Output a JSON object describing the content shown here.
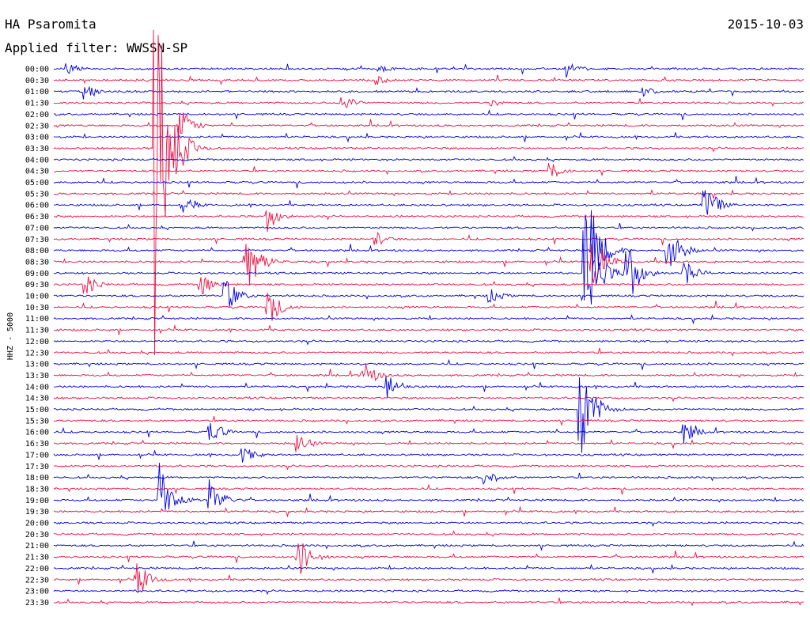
{
  "header": {
    "station": "HA Psaromita",
    "filter_label": "Applied filter: WWSSN-SP",
    "date": "2015-10-03"
  },
  "chart_data": {
    "type": "helicorder",
    "ylabel": "HHZ - 5000",
    "row_labels": [
      "00:00",
      "00:30",
      "01:00",
      "01:30",
      "02:00",
      "02:30",
      "03:00",
      "03:30",
      "04:00",
      "04:30",
      "05:00",
      "05:30",
      "06:00",
      "06:30",
      "07:00",
      "07:30",
      "08:00",
      "08:30",
      "09:00",
      "09:30",
      "10:00",
      "10:30",
      "11:00",
      "11:30",
      "12:00",
      "12:30",
      "13:00",
      "13:30",
      "14:00",
      "14:30",
      "15:00",
      "15:30",
      "16:00",
      "16:30",
      "17:00",
      "17:30",
      "18:00",
      "18:30",
      "19:00",
      "19:30",
      "20:00",
      "20:30",
      "21:00",
      "21:30",
      "22:00",
      "22:30",
      "23:00",
      "23:30"
    ],
    "trace_colors": [
      "#0000e0",
      "#ee1144"
    ],
    "minutes_per_line": 30,
    "events": [
      {
        "row": 0,
        "minute": 0.5,
        "amplitude": 10
      },
      {
        "row": 0,
        "minute": 13,
        "amplitude": 6
      },
      {
        "row": 0,
        "minute": 20.5,
        "amplitude": 12
      },
      {
        "row": 1,
        "minute": 13,
        "amplitude": 6
      },
      {
        "row": 2,
        "minute": 1.2,
        "amplitude": 10
      },
      {
        "row": 2,
        "minute": 23.5,
        "amplitude": 8
      },
      {
        "row": 3,
        "minute": 11.5,
        "amplitude": 14
      },
      {
        "row": 3,
        "minute": 17.5,
        "amplitude": 6
      },
      {
        "row": 5,
        "minute": 5,
        "amplitude": 26
      },
      {
        "row": 7,
        "minute": 4,
        "amplitude": 300
      },
      {
        "row": 9,
        "minute": 19.8,
        "amplitude": 14
      },
      {
        "row": 12,
        "minute": 5.2,
        "amplitude": 12
      },
      {
        "row": 12,
        "minute": 26,
        "amplitude": 30
      },
      {
        "row": 13,
        "minute": 8.5,
        "amplitude": 22
      },
      {
        "row": 15,
        "minute": 12.8,
        "amplitude": 12
      },
      {
        "row": 16,
        "minute": 21.5,
        "amplitude": 55
      },
      {
        "row": 16,
        "minute": 24.5,
        "amplitude": 40
      },
      {
        "row": 17,
        "minute": 21.5,
        "amplitude": 40
      },
      {
        "row": 17,
        "minute": 7.6,
        "amplitude": 60
      },
      {
        "row": 18,
        "minute": 21.2,
        "amplitude": 90
      },
      {
        "row": 18,
        "minute": 22.8,
        "amplitude": 60
      },
      {
        "row": 18,
        "minute": 25.2,
        "amplitude": 20
      },
      {
        "row": 19,
        "minute": 1.2,
        "amplitude": 16
      },
      {
        "row": 19,
        "minute": 5.8,
        "amplitude": 18
      },
      {
        "row": 20,
        "minute": 6.8,
        "amplitude": 28
      },
      {
        "row": 20,
        "minute": 17.4,
        "amplitude": 12
      },
      {
        "row": 21,
        "minute": 8.5,
        "amplitude": 30
      },
      {
        "row": 27,
        "minute": 12.3,
        "amplitude": 22
      },
      {
        "row": 28,
        "minute": 13.3,
        "amplitude": 20
      },
      {
        "row": 30,
        "minute": 21,
        "amplitude": 80
      },
      {
        "row": 32,
        "minute": 6.2,
        "amplitude": 18
      },
      {
        "row": 32,
        "minute": 25.2,
        "amplitude": 16
      },
      {
        "row": 33,
        "minute": 9.7,
        "amplitude": 16
      },
      {
        "row": 34,
        "minute": 7.5,
        "amplitude": 14
      },
      {
        "row": 36,
        "minute": 17.2,
        "amplitude": 14
      },
      {
        "row": 38,
        "minute": 4.2,
        "amplitude": 55
      },
      {
        "row": 38,
        "minute": 6.2,
        "amplitude": 30
      },
      {
        "row": 43,
        "minute": 9.7,
        "amplitude": 32
      },
      {
        "row": 45,
        "minute": 3.3,
        "amplitude": 26
      }
    ]
  }
}
